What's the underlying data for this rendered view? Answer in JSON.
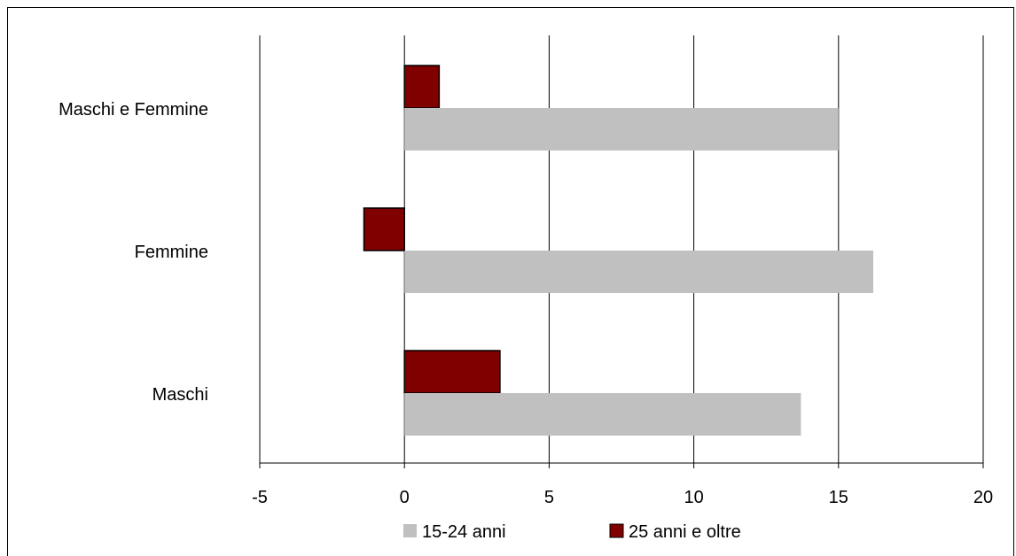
{
  "chart_data": {
    "type": "bar",
    "orientation": "horizontal",
    "categories": [
      "Maschi e Femmine",
      "Femmine",
      "Maschi"
    ],
    "series": [
      {
        "name": "15-24 anni",
        "values": [
          15.0,
          16.2,
          13.7
        ],
        "color": "#c0c0c0"
      },
      {
        "name": "25 anni e oltre",
        "values": [
          1.2,
          -1.4,
          3.3
        ],
        "color": "#800000"
      }
    ],
    "xlim": [
      -5,
      20
    ],
    "xticks": [
      "-5",
      "0",
      "5",
      "10",
      "15",
      "20"
    ],
    "grid": "vertical",
    "legend_position": "bottom",
    "title": "",
    "xlabel": "",
    "ylabel": ""
  }
}
